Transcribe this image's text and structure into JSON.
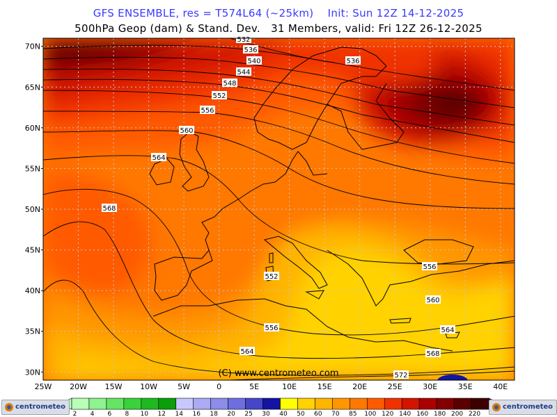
{
  "header": {
    "title_line1": "GFS ENSEMBLE, res = T574L64 (~25km)    Init: Sun 12Z 14-12-2025",
    "title_line2": "500hPa Geop (dam) & Stand. Dev.   31 Members, valid: Fri 12Z 26-12-2025"
  },
  "map": {
    "lat_labels": [
      "70N",
      "65N",
      "60N",
      "55N",
      "50N",
      "45N",
      "40N",
      "35N",
      "30N"
    ],
    "lon_labels": [
      "25W",
      "20W",
      "15W",
      "10W",
      "5W",
      "0",
      "5E",
      "10E",
      "15E",
      "20E",
      "25E",
      "30E",
      "35E",
      "40E"
    ],
    "contour_labels": [
      "532",
      "536",
      "540",
      "544",
      "548",
      "552",
      "556",
      "560",
      "564",
      "568",
      "536",
      "552",
      "556",
      "556",
      "560",
      "564",
      "568",
      "572",
      "564"
    ],
    "watermark": "(C)  www.centrometeo.com",
    "colors": {
      "frame": "#000000",
      "grid": "#bfbfbf",
      "contour": "#000000"
    }
  },
  "legend": {
    "values": [
      "2",
      "4",
      "6",
      "8",
      "10",
      "12",
      "14",
      "16",
      "18",
      "20",
      "25",
      "30",
      "40",
      "50",
      "60",
      "70",
      "85",
      "100",
      "120",
      "140",
      "160",
      "180",
      "200",
      "220"
    ],
    "colors": [
      "#b8ffb8",
      "#8ef28e",
      "#64e664",
      "#3ad23a",
      "#1eb91e",
      "#0a9e0a",
      "#c8c8ff",
      "#aaaaf5",
      "#8c8ceb",
      "#6e6ee1",
      "#4646c8",
      "#1414a0",
      "#ffff00",
      "#ffd200",
      "#ffb400",
      "#ff9600",
      "#ff7800",
      "#ff5a00",
      "#f03200",
      "#d21400",
      "#aa0000",
      "#820000",
      "#5a0000",
      "#3c0000"
    ],
    "logo_left": "centrometeo",
    "logo_right": "centrometeo"
  }
}
